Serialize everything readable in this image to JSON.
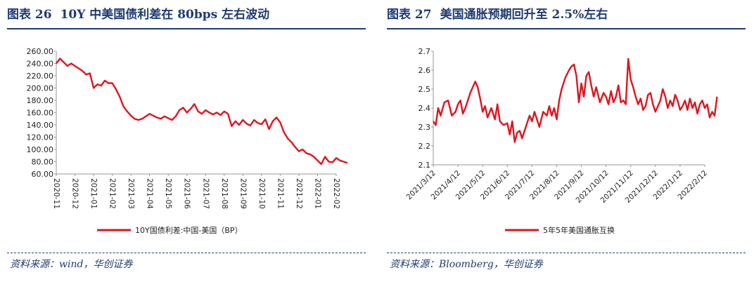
{
  "figures": [
    {
      "label": "图表 26",
      "title": "10Y 中美国债利差在 80bps 左右波动",
      "source": "资料来源：wind，华创证券"
    },
    {
      "label": "图表 27",
      "title": "美国通胀预期回升至 2.5%左右",
      "source": "资料来源：Bloomberg，华创证券"
    }
  ],
  "chart_data": [
    {
      "type": "line",
      "title": "10Y 中美国债利差在 80bps 左右波动",
      "series_color": "#e0141e",
      "ylim": [
        60,
        260
      ],
      "yticks": [
        "60.00",
        "80.00",
        "100.00",
        "120.00",
        "140.00",
        "160.00",
        "180.00",
        "200.00",
        "220.00",
        "240.00",
        "260.00"
      ],
      "xticks": [
        "2020-11",
        "2020-12",
        "2021-01",
        "2021-02",
        "2021-03",
        "2021-04",
        "2021-05",
        "2021-06",
        "2021-07",
        "2021-08",
        "2021-09",
        "2021-10",
        "2021-11",
        "2021-12",
        "2022-01",
        "2022-02"
      ],
      "legend": "10Y国债利差:中国-美国（BP）",
      "series": [
        {
          "name": "10Y国债利差:中国-美国（BP）",
          "x": [
            0,
            0.2,
            0.4,
            0.6,
            0.8,
            1.0,
            1.2,
            1.4,
            1.6,
            1.8,
            2.0,
            2.2,
            2.4,
            2.6,
            2.8,
            3.0,
            3.2,
            3.4,
            3.6,
            3.8,
            4.0,
            4.2,
            4.4,
            4.6,
            4.8,
            5.0,
            5.2,
            5.4,
            5.6,
            5.8,
            6.0,
            6.2,
            6.4,
            6.6,
            6.8,
            7.0,
            7.2,
            7.4,
            7.6,
            7.8,
            8.0,
            8.2,
            8.4,
            8.6,
            8.8,
            9.0,
            9.2,
            9.4,
            9.6,
            9.8,
            10.0,
            10.2,
            10.4,
            10.6,
            10.8,
            11.0,
            11.2,
            11.4,
            11.6,
            11.8,
            12.0,
            12.2,
            12.4,
            12.6,
            12.8,
            13.0,
            13.2,
            13.4,
            13.6,
            13.8,
            14.0,
            14.2,
            14.4,
            14.6,
            14.8,
            15.0,
            15.2,
            15.4,
            15.6
          ],
          "values": [
            240,
            248,
            242,
            236,
            240,
            236,
            232,
            228,
            222,
            224,
            200,
            206,
            204,
            212,
            208,
            208,
            198,
            186,
            170,
            162,
            155,
            150,
            148,
            150,
            154,
            158,
            155,
            152,
            150,
            154,
            151,
            148,
            154,
            164,
            168,
            160,
            166,
            174,
            162,
            158,
            164,
            160,
            157,
            160,
            156,
            162,
            158,
            138,
            146,
            140,
            148,
            142,
            139,
            148,
            143,
            141,
            149,
            133,
            146,
            152,
            144,
            128,
            118,
            112,
            104,
            97,
            100,
            94,
            92,
            88,
            82,
            76,
            88,
            80,
            79,
            86,
            82,
            80,
            78
          ]
        }
      ]
    },
    {
      "type": "line",
      "title": "美国通胀预期回升至 2.5%左右",
      "series_color": "#e0141e",
      "ylim": [
        2.1,
        2.7
      ],
      "yticks": [
        "2.1",
        "2.2",
        "2.3",
        "2.4",
        "2.5",
        "2.6",
        "2.7"
      ],
      "xticks": [
        "2021/3/12",
        "2021/4/12",
        "2021/5/12",
        "2021/6/12",
        "2021/7/12",
        "2021/8/12",
        "2021/9/12",
        "2021/10/12",
        "2021/11/12",
        "2021/12/12",
        "2022/1/12",
        "2022/2/12"
      ],
      "legend": "5年5年美国通胀互换",
      "series": [
        {
          "name": "5年5年美国通胀互换",
          "x": [
            0,
            0.1,
            0.2,
            0.3,
            0.45,
            0.6,
            0.75,
            0.9,
            1.0,
            1.1,
            1.2,
            1.3,
            1.5,
            1.7,
            1.8,
            1.9,
            2.0,
            2.1,
            2.2,
            2.35,
            2.5,
            2.6,
            2.7,
            2.85,
            3.0,
            3.1,
            3.2,
            3.3,
            3.4,
            3.5,
            3.6,
            3.7,
            3.8,
            3.9,
            4.0,
            4.1,
            4.2,
            4.3,
            4.45,
            4.6,
            4.7,
            4.8,
            4.9,
            5.0,
            5.1,
            5.2,
            5.35,
            5.5,
            5.6,
            5.7,
            5.8,
            5.9,
            6.0,
            6.1,
            6.2,
            6.3,
            6.4,
            6.5,
            6.6,
            6.75,
            6.9,
            7.0,
            7.1,
            7.2,
            7.3,
            7.4,
            7.5,
            7.6,
            7.7,
            7.8,
            7.9,
            8.0,
            8.1,
            8.2,
            8.3,
            8.4,
            8.5,
            8.6,
            8.7,
            8.8,
            8.9,
            9.0,
            9.1,
            9.2,
            9.3,
            9.4,
            9.5,
            9.6,
            9.7,
            9.8,
            9.9,
            10.0,
            10.1,
            10.2,
            10.3,
            10.4,
            10.5,
            10.6,
            10.7,
            10.8,
            10.9,
            11.0,
            11.1,
            11.2,
            11.3,
            11.4,
            11.5
          ],
          "values": [
            2.33,
            2.31,
            2.4,
            2.36,
            2.43,
            2.44,
            2.36,
            2.38,
            2.42,
            2.44,
            2.37,
            2.4,
            2.48,
            2.54,
            2.51,
            2.45,
            2.38,
            2.41,
            2.35,
            2.4,
            2.34,
            2.42,
            2.33,
            2.31,
            2.32,
            2.26,
            2.33,
            2.22,
            2.27,
            2.28,
            2.24,
            2.28,
            2.32,
            2.36,
            2.33,
            2.38,
            2.34,
            2.3,
            2.38,
            2.36,
            2.41,
            2.36,
            2.4,
            2.34,
            2.44,
            2.5,
            2.56,
            2.6,
            2.62,
            2.63,
            2.57,
            2.43,
            2.53,
            2.46,
            2.57,
            2.59,
            2.52,
            2.46,
            2.51,
            2.43,
            2.48,
            2.46,
            2.42,
            2.49,
            2.43,
            2.46,
            2.52,
            2.43,
            2.44,
            2.42,
            2.66,
            2.55,
            2.51,
            2.46,
            2.42,
            2.45,
            2.39,
            2.41,
            2.47,
            2.48,
            2.42,
            2.38,
            2.41,
            2.44,
            2.5,
            2.46,
            2.4,
            2.44,
            2.41,
            2.47,
            2.44,
            2.39,
            2.41,
            2.44,
            2.39,
            2.45,
            2.4,
            2.43,
            2.37,
            2.42,
            2.44,
            2.4,
            2.42,
            2.35,
            2.38,
            2.36,
            2.46
          ]
        }
      ]
    }
  ]
}
